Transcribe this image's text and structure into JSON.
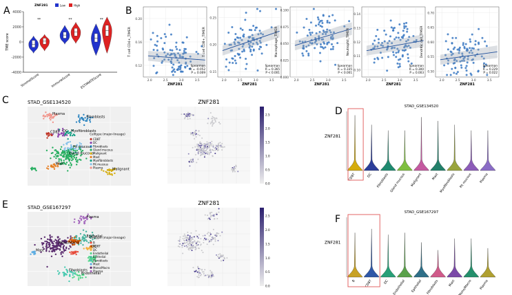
{
  "panel_labels": [
    "A",
    "B",
    "C",
    "D",
    "E",
    "F"
  ],
  "chart_data": [
    {
      "id": "A",
      "type": "violin",
      "legend_title": "ZNF281",
      "legend": [
        "Low",
        "High"
      ],
      "colors": {
        "Low": "#2233cc",
        "High": "#dd2222"
      },
      "ylabel": "TME score",
      "yticks": [
        "4000",
        "2000",
        "0",
        "-2000",
        "-4000"
      ],
      "ylim": [
        -4000,
        4000
      ],
      "categories": [
        "StromalScore",
        "ImmuneScore",
        "ESTIMATEScore"
      ],
      "significance": [
        "**",
        "**",
        "**"
      ],
      "series": [
        {
          "name": "Low",
          "median": [
            -300,
            900,
            500
          ],
          "q1": [
            -700,
            500,
            0
          ],
          "q3": [
            200,
            1300,
            1100
          ],
          "min": [
            -1500,
            -300,
            -1800
          ],
          "max": [
            800,
            2200,
            2400
          ]
        },
        {
          "name": "High",
          "median": [
            100,
            1300,
            1500
          ],
          "q1": [
            -300,
            800,
            800
          ],
          "q3": [
            500,
            1800,
            2200
          ],
          "min": [
            -1200,
            -200,
            -1500
          ],
          "max": [
            1000,
            2600,
            3300
          ]
        }
      ]
    },
    {
      "id": "B",
      "type": "scatter",
      "stat_label": "Spearman",
      "xlabel": "ZNF281",
      "plots": [
        {
          "ylabel": "T cell CD4+_TIMER",
          "yticks": [
            "0.20",
            "0.16",
            "0.12"
          ],
          "ylim": [
            0.1,
            0.22
          ],
          "R": "R = -0.052",
          "P": "P = 0.009",
          "slope": -0.004,
          "intercept": 0.144
        },
        {
          "ylabel": "T cell CD8+_TIMER",
          "yticks": [
            "0.25",
            "0.20",
            "0.15"
          ],
          "ylim": [
            0.14,
            0.27
          ],
          "R": "R = 0.365",
          "P": "P < 0.001",
          "slope": 0.02,
          "intercept": 0.15
        },
        {
          "ylabel": "Macrophage_TIMER",
          "yticks": [
            "0.100",
            "0.075",
            "0.050",
            "0.025",
            "0.000"
          ],
          "ylim": [
            0.0,
            0.105
          ],
          "R": "R = 0.335",
          "P": "P < 0.001",
          "slope": 0.014,
          "intercept": 0.02
        },
        {
          "ylabel": "Neutrophil_TIMER",
          "yticks": [
            "0.14",
            "0.13",
            "0.12",
            "0.11",
            "0.10"
          ],
          "ylim": [
            0.095,
            0.145
          ],
          "R": "R = 0.300",
          "P": "P = 0.003",
          "slope": 0.004,
          "intercept": 0.106
        },
        {
          "ylabel": "Dendritic cell_TIMER",
          "yticks": [
            "0.70",
            "0.65",
            "0.60",
            "0.55",
            "0.50"
          ],
          "ylim": [
            0.48,
            0.72
          ],
          "R": "R = 0.229",
          "P": "P = 0.022",
          "slope": 0.015,
          "intercept": 0.51
        }
      ],
      "xticks": [
        "2.0",
        "2.5",
        "3.0",
        "3.5"
      ],
      "xlim": [
        1.8,
        3.8
      ]
    },
    {
      "id": "C",
      "type": "umap",
      "title": "STAD_GSE134520",
      "legend_title": "Celltype (major-lineage)",
      "legend": [
        "CD8T",
        "DC",
        "Fibroblasts",
        "Gland mucous",
        "Malignant",
        "Mast",
        "Myofibroblasts",
        "Pit mucous",
        "Plasma"
      ],
      "colors": [
        "#c0392b",
        "#8e44ad",
        "#2e86c1",
        "#27ae60",
        "#d4ac0d",
        "#e67e22",
        "#16a085",
        "#85c1e9",
        "#f1948a"
      ],
      "cluster_labels": [
        "Plasma",
        "Fibroblasts",
        "DC",
        "Myofibroblasts",
        "CD8T",
        "Pit mucous",
        "Gland mucous",
        "Mast",
        "Malignant"
      ]
    },
    {
      "id": "C2",
      "type": "umap-expression",
      "title": "ZNF281",
      "colorbar_ticks": [
        "2.5",
        "2.0",
        "1.5",
        "1.0",
        "0.5",
        "0.0"
      ]
    },
    {
      "id": "D",
      "type": "violin",
      "title": "STAD_GSE134520",
      "ylabel": "ZNF281",
      "categories": [
        "CD8T",
        "DC",
        "Fibroblasts",
        "Gland mucous",
        "Malignant",
        "Mast",
        "Myofibroblasts",
        "Pit mucous",
        "Plasma"
      ],
      "colors": [
        "#d4ac0d",
        "#2c3e9a",
        "#1f8a70",
        "#7fbf3f",
        "#c45aa0",
        "#22806a",
        "#9aa53c",
        "#8c5cb8",
        "#8a6cc6"
      ],
      "max_values": [
        2.9,
        2.4,
        2.1,
        2.1,
        2.8,
        2.6,
        2.4,
        2.1,
        2.1
      ],
      "highlight": "CD8T"
    },
    {
      "id": "E",
      "type": "umap",
      "title": "STAD_GSE167297",
      "legend_title": "Celltype (major-lineage)",
      "legend": [
        "B",
        "CD8T",
        "DC",
        "Endothelial",
        "Epithelial",
        "Fibroblasts",
        "Mast",
        "Mono/Macro",
        "Plasma"
      ],
      "colors": [
        "#e74c3c",
        "#d35400",
        "#f5b041",
        "#58d68d",
        "#45b39d",
        "#48c9b0",
        "#5dade2",
        "#5b2c6f",
        "#a569bd"
      ],
      "cluster_labels": [
        "Plasma",
        "Epithelial",
        "Mast",
        "Mono/Macro",
        "DC",
        "Fibroblasts",
        "Endothelial"
      ]
    },
    {
      "id": "E2",
      "type": "umap-expression",
      "title": "ZNF281",
      "colorbar_ticks": [
        "2.5",
        "2.0",
        "1.5",
        "1.0",
        "0.5",
        "0.0"
      ]
    },
    {
      "id": "F",
      "type": "violin",
      "title": "STAD_GSE167297",
      "ylabel": "ZNF281",
      "categories": [
        "B",
        "CD8T",
        "DC",
        "Endothelial",
        "Epithelial",
        "Fibroblasts",
        "Mast",
        "Mono/Macro",
        "Plasma"
      ],
      "colors": [
        "#c8a224",
        "#2f58a8",
        "#28a078",
        "#5aa14a",
        "#2e6f88",
        "#d05a8a",
        "#7b4aa8",
        "#24906c",
        "#b0a030"
      ],
      "max_values": [
        2.3,
        2.5,
        2.2,
        2.3,
        1.8,
        1.4,
        2.0,
        2.0,
        1.5
      ],
      "highlight": "B+CD8T"
    }
  ]
}
